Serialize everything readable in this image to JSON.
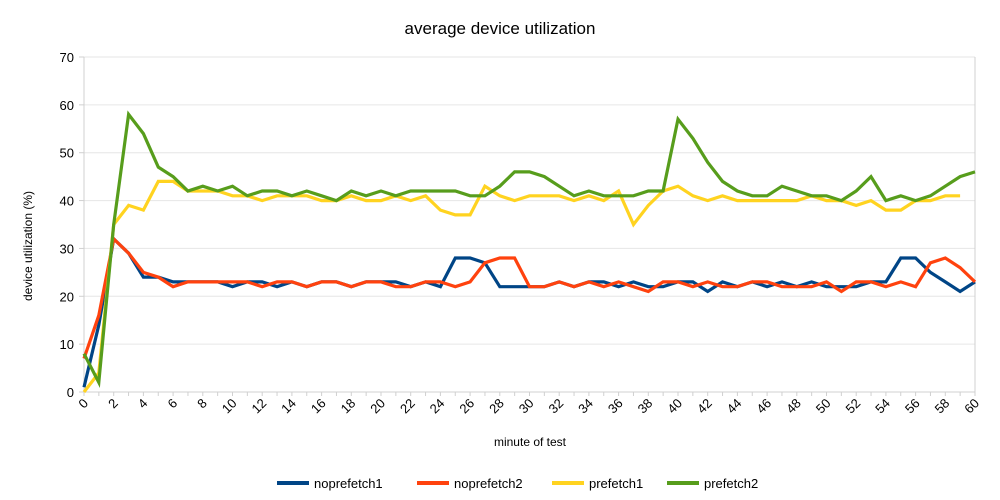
{
  "chart_data": {
    "type": "line",
    "title": "average device utilization",
    "xlabel": "minute of test",
    "ylabel": "device utilization (%)",
    "xlim": [
      0,
      60
    ],
    "ylim": [
      0,
      70
    ],
    "x_tick_labels": [
      "0",
      "2",
      "4",
      "6",
      "8",
      "10",
      "12",
      "14",
      "16",
      "18",
      "20",
      "22",
      "24",
      "26",
      "28",
      "30",
      "32",
      "34",
      "36",
      "38",
      "40",
      "42",
      "44",
      "46",
      "48",
      "50",
      "52",
      "54",
      "56",
      "58",
      "60"
    ],
    "y_tick_labels": [
      "0",
      "10",
      "20",
      "30",
      "40",
      "50",
      "60",
      "70"
    ],
    "grid": "horizontal",
    "legend_position": "bottom",
    "x": [
      0,
      1,
      2,
      3,
      4,
      5,
      6,
      7,
      8,
      9,
      10,
      11,
      12,
      13,
      14,
      15,
      16,
      17,
      18,
      19,
      20,
      21,
      22,
      23,
      24,
      25,
      26,
      27,
      28,
      29,
      30,
      31,
      32,
      33,
      34,
      35,
      36,
      37,
      38,
      39,
      40,
      41,
      42,
      43,
      44,
      45,
      46,
      47,
      48,
      49,
      50,
      51,
      52,
      53,
      54,
      55,
      56,
      57,
      58,
      59,
      60
    ],
    "series": [
      {
        "name": "noprefetch1",
        "color": "#004586",
        "values": [
          1,
          14,
          32,
          29,
          24,
          24,
          23,
          23,
          23,
          23,
          22,
          23,
          23,
          22,
          23,
          22,
          23,
          23,
          22,
          23,
          23,
          23,
          22,
          23,
          22,
          28,
          28,
          27,
          22,
          22,
          22,
          22,
          23,
          22,
          23,
          23,
          22,
          23,
          22,
          22,
          23,
          23,
          21,
          23,
          22,
          23,
          22,
          23,
          22,
          23,
          22,
          22,
          22,
          23,
          23,
          28,
          28,
          25,
          23,
          21,
          23
        ]
      },
      {
        "name": "noprefetch2",
        "color": "#ff420e",
        "values": [
          7,
          16,
          32,
          29,
          25,
          24,
          22,
          23,
          23,
          23,
          23,
          23,
          22,
          23,
          23,
          22,
          23,
          23,
          22,
          23,
          23,
          22,
          22,
          23,
          23,
          22,
          23,
          27,
          28,
          28,
          22,
          22,
          23,
          22,
          23,
          22,
          23,
          22,
          21,
          23,
          23,
          22,
          23,
          22,
          22,
          23,
          23,
          22,
          22,
          22,
          23,
          21,
          23,
          23,
          22,
          23,
          22,
          27,
          28,
          26,
          23
        ]
      },
      {
        "name": "prefetch1",
        "color": "#ffd320",
        "values": [
          0,
          4,
          35,
          39,
          38,
          44,
          44,
          42,
          42,
          42,
          41,
          41,
          40,
          41,
          41,
          41,
          40,
          40,
          41,
          40,
          40,
          41,
          40,
          41,
          38,
          37,
          37,
          43,
          41,
          40,
          41,
          41,
          41,
          40,
          41,
          40,
          42,
          35,
          39,
          42,
          43,
          41,
          40,
          41,
          40,
          40,
          40,
          40,
          40,
          41,
          40,
          40,
          39,
          40,
          38,
          38,
          40,
          40,
          41,
          41,
          null
        ]
      },
      {
        "name": "prefetch2",
        "color": "#579d1c",
        "values": [
          8,
          2,
          35,
          58,
          54,
          47,
          45,
          42,
          43,
          42,
          43,
          41,
          42,
          42,
          41,
          42,
          41,
          40,
          42,
          41,
          42,
          41,
          42,
          42,
          42,
          42,
          41,
          41,
          43,
          46,
          46,
          45,
          43,
          41,
          42,
          41,
          41,
          41,
          42,
          42,
          57,
          53,
          48,
          44,
          42,
          41,
          41,
          43,
          42,
          41,
          41,
          40,
          42,
          45,
          40,
          41,
          40,
          41,
          43,
          45,
          46
        ]
      }
    ]
  }
}
